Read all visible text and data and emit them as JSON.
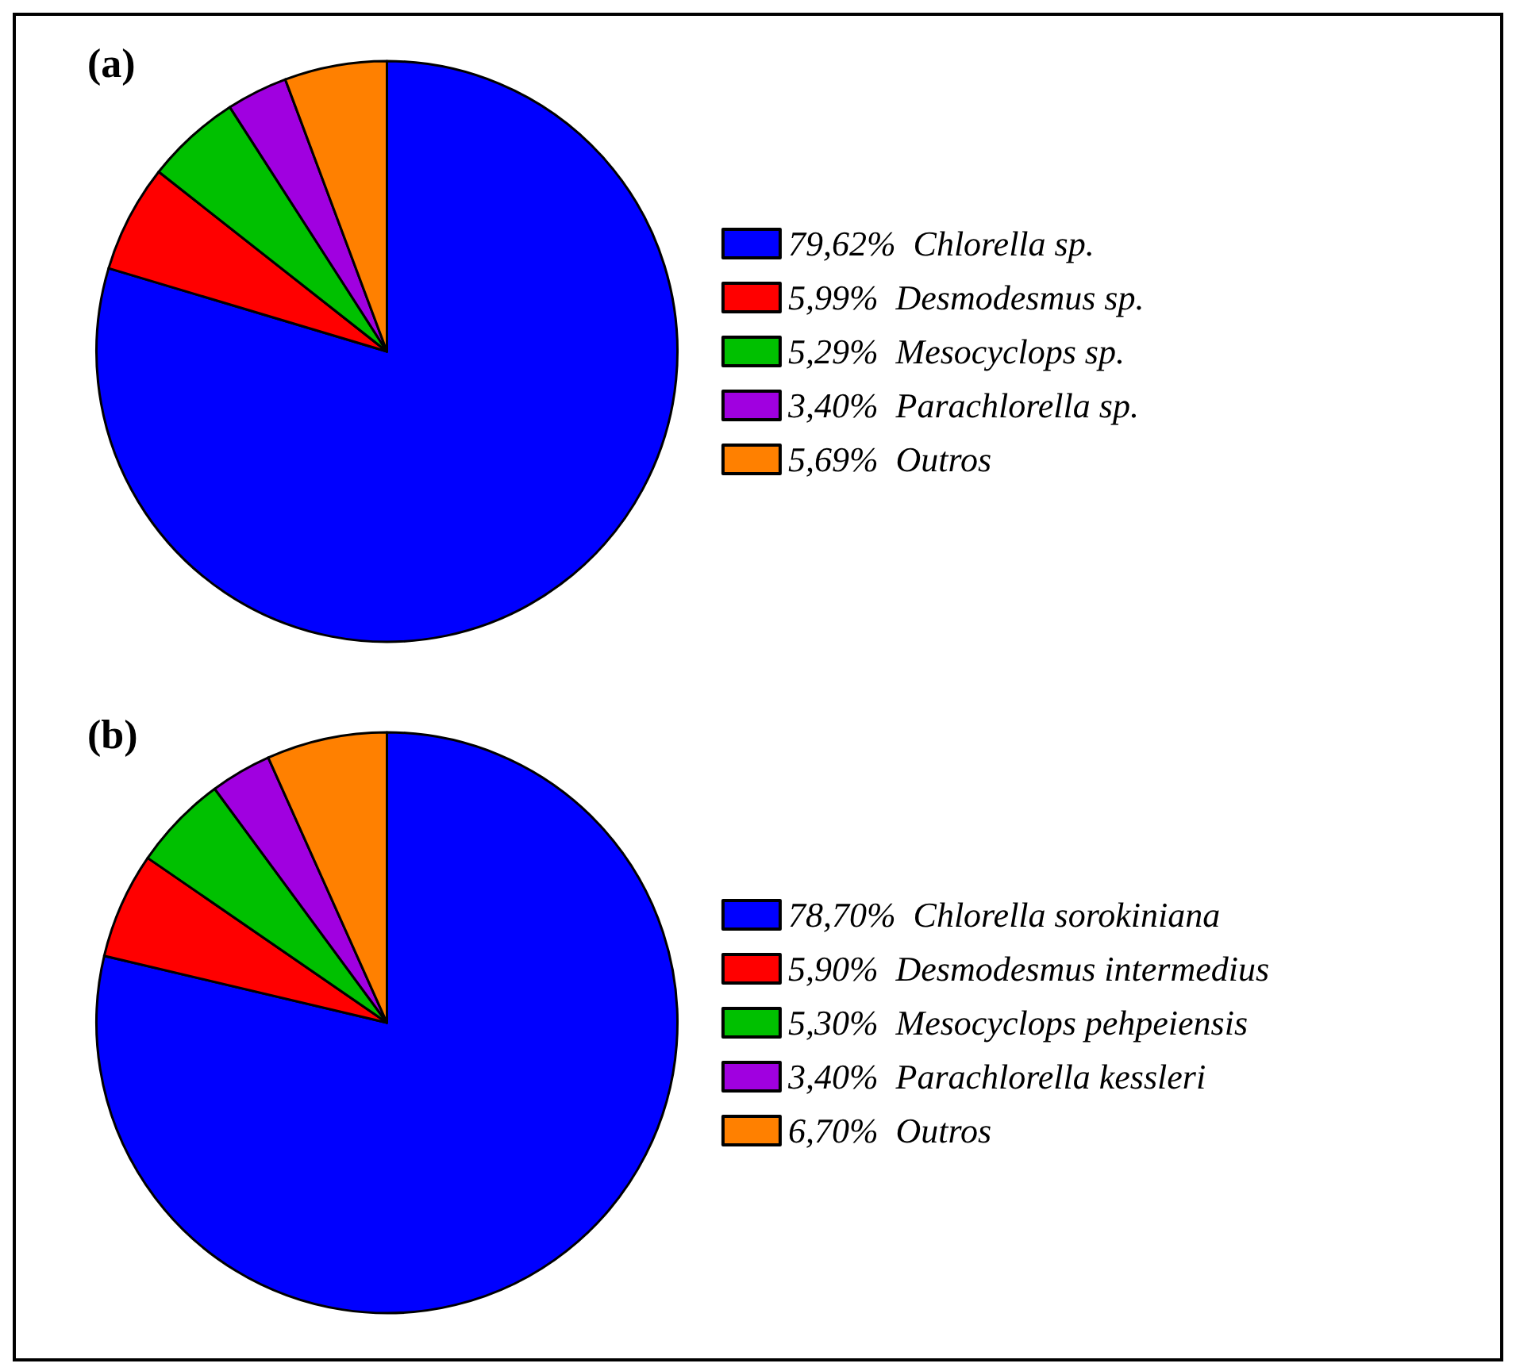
{
  "chart_data": [
    {
      "type": "pie",
      "title": "(a)",
      "categories": [
        "Chlorella sp.",
        "Desmodesmus sp.",
        "Mesocyclops sp.",
        "Parachlorella sp.",
        "Outros"
      ],
      "values": [
        79.62,
        5.99,
        5.29,
        3.4,
        5.69
      ],
      "value_labels": [
        "79,62%",
        "5,99%",
        "5,29%",
        "3,40%",
        "5,69%"
      ],
      "colors": [
        "#0000ff",
        "#ff0000",
        "#00c000",
        "#a000e0",
        "#ff8000"
      ],
      "legend": "right"
    },
    {
      "type": "pie",
      "title": "(b)",
      "categories": [
        "Chlorella sorokiniana",
        "Desmodesmus intermedius",
        "Mesocyclops pehpeiensis",
        "Parachlorella kessleri",
        "Outros"
      ],
      "values": [
        78.7,
        5.9,
        5.3,
        3.4,
        6.7
      ],
      "value_labels": [
        "78,70%",
        "5,90%",
        "5,30%",
        "3,40%",
        "6,70%"
      ],
      "colors": [
        "#0000ff",
        "#ff0000",
        "#00c000",
        "#a000e0",
        "#ff8000"
      ],
      "legend": "right"
    }
  ]
}
